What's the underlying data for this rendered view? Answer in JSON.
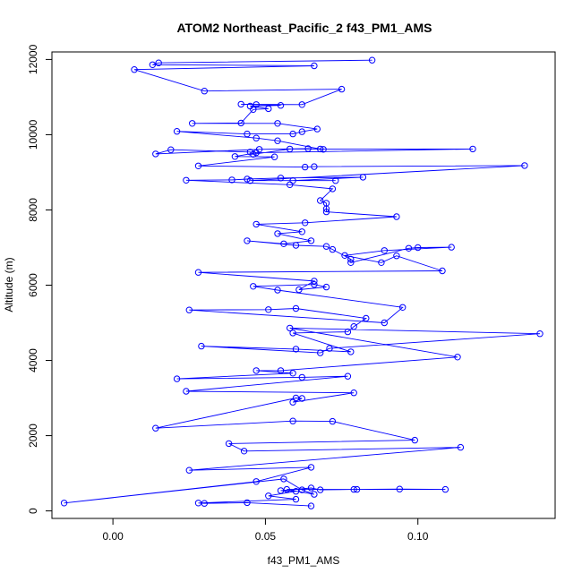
{
  "chart_data": {
    "type": "line",
    "title": "ATOM2 Northeast_Pacific_2 f43_PM1_AMS",
    "xlabel": "f43_PM1_AMS",
    "ylabel": "Altitude (m)",
    "xlim": [
      -0.02,
      0.145
    ],
    "ylim": [
      -200,
      12200
    ],
    "xticks": [
      0.0,
      0.05,
      0.1
    ],
    "xtick_labels": [
      "0.00",
      "0.05",
      "0.10"
    ],
    "yticks": [
      0,
      2000,
      4000,
      6000,
      8000,
      10000,
      12000
    ],
    "ytick_labels": [
      "0",
      "2000",
      "4000",
      "6000",
      "8000",
      "10000",
      "12000"
    ],
    "grid": false,
    "series": [
      {
        "color": "#0000ff",
        "marker": "open-circle",
        "x": [
          0.085,
          0.015,
          0.013,
          0.066,
          0.007,
          0.03,
          0.075,
          0.062,
          0.042,
          0.047,
          0.055,
          0.045,
          0.051,
          0.046,
          0.042,
          0.026,
          0.054,
          0.067,
          0.062,
          0.059,
          0.044,
          0.021,
          0.047,
          0.054,
          0.068,
          0.069,
          0.064,
          0.048,
          0.014,
          0.019,
          0.045,
          0.046,
          0.058,
          0.118,
          0.047,
          0.04,
          0.053,
          0.028,
          0.063,
          0.066,
          0.135,
          0.045,
          0.073,
          0.059,
          0.082,
          0.055,
          0.044,
          0.039,
          0.024,
          0.058,
          0.072,
          0.068,
          0.07,
          0.07,
          0.07,
          0.093,
          0.063,
          0.047,
          0.062,
          0.054,
          0.065,
          0.056,
          0.044,
          0.06,
          0.07,
          0.072,
          0.078,
          0.078,
          0.097,
          0.1,
          0.111,
          0.089,
          0.076,
          0.088,
          0.093,
          0.108,
          0.028,
          0.066,
          0.061,
          0.07,
          0.066,
          0.046,
          0.054,
          0.095,
          0.089,
          0.025,
          0.051,
          0.06,
          0.083,
          0.079,
          0.077,
          0.059,
          0.078,
          0.06,
          0.029,
          0.068,
          0.071,
          0.14,
          0.058,
          0.113,
          0.055,
          0.047,
          0.059,
          0.021,
          0.062,
          0.077,
          0.024,
          0.079,
          0.059,
          0.062,
          0.06,
          0.014,
          0.059,
          0.072,
          0.099,
          0.038,
          0.043,
          0.114,
          0.025,
          0.065,
          0.047,
          -0.016,
          0.056,
          0.062,
          0.066,
          0.057,
          0.08,
          0.094,
          0.109,
          0.079,
          0.068,
          0.065,
          0.055,
          0.06,
          0.051,
          0.06,
          0.028,
          0.03,
          0.044,
          0.065
        ],
        "y": [
          11980,
          11910,
          11860,
          11830,
          11730,
          11160,
          11210,
          10800,
          10810,
          10800,
          10780,
          10760,
          10690,
          10670,
          10310,
          10300,
          10300,
          10150,
          10080,
          10020,
          10020,
          10090,
          9910,
          9840,
          9620,
          9610,
          9630,
          9610,
          9490,
          9600,
          9540,
          9480,
          9620,
          9620,
          9520,
          9420,
          9410,
          9170,
          9140,
          9150,
          9180,
          8780,
          8780,
          8780,
          8870,
          8850,
          8820,
          8800,
          8790,
          8670,
          8560,
          8250,
          8180,
          8030,
          7950,
          7820,
          7660,
          7620,
          7420,
          7370,
          7180,
          7100,
          7180,
          7060,
          7030,
          6950,
          6690,
          6600,
          6980,
          7000,
          7010,
          6920,
          6790,
          6600,
          6780,
          6380,
          6340,
          6110,
          5880,
          5950,
          6020,
          5970,
          5870,
          5410,
          5000,
          5340,
          5350,
          5380,
          5120,
          4900,
          4760,
          4730,
          4230,
          4300,
          4380,
          4200,
          4320,
          4710,
          4860,
          4090,
          3730,
          3730,
          3660,
          3510,
          3550,
          3580,
          3180,
          3140,
          2890,
          2990,
          3000,
          2200,
          2390,
          2380,
          1880,
          1790,
          1590,
          1690,
          1080,
          1160,
          780,
          210,
          850,
          560,
          440,
          570,
          570,
          580,
          570,
          570,
          560,
          610,
          540,
          520,
          400,
          310,
          210,
          200,
          220,
          130
        ]
      }
    ]
  }
}
